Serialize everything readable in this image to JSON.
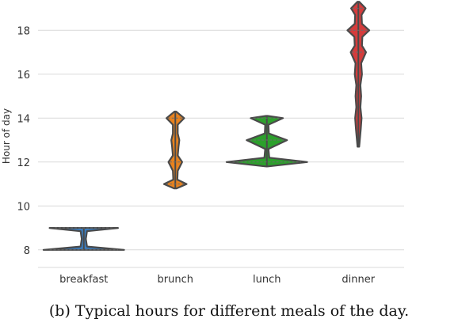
{
  "caption": "(b) Typical hours for different meals of the day.",
  "chart_data": {
    "type": "violin",
    "title": "",
    "xlabel": "",
    "ylabel": "Hour of day",
    "categories": [
      "breakfast",
      "brunch",
      "lunch",
      "dinner"
    ],
    "ylim": [
      7.2,
      19.2
    ],
    "yticks": [
      8,
      10,
      12,
      14,
      16,
      18
    ],
    "grid": "horizontal",
    "series": [
      {
        "category": "breakfast",
        "color": "#3a7fc4",
        "range": [
          8,
          9
        ],
        "density": [
          [
            8,
            1.0
          ],
          [
            8.15,
            0.08
          ],
          [
            8.5,
            0.05
          ],
          [
            8.85,
            0.08
          ],
          [
            9,
            0.85
          ]
        ]
      },
      {
        "category": "brunch",
        "color": "#e8821e",
        "range": [
          10.8,
          14.3
        ],
        "density": [
          [
            10.8,
            0.03
          ],
          [
            11,
            0.28
          ],
          [
            11.2,
            0.05
          ],
          [
            11.6,
            0.06
          ],
          [
            12,
            0.17
          ],
          [
            12.3,
            0.06
          ],
          [
            12.7,
            0.08
          ],
          [
            13,
            0.1
          ],
          [
            13.3,
            0.06
          ],
          [
            13.7,
            0.06
          ],
          [
            14,
            0.22
          ],
          [
            14.3,
            0.02
          ]
        ]
      },
      {
        "category": "lunch",
        "color": "#2ca02c",
        "range": [
          11.8,
          14.1
        ],
        "density": [
          [
            11.8,
            0.03
          ],
          [
            12,
            1.0
          ],
          [
            12.2,
            0.06
          ],
          [
            12.6,
            0.04
          ],
          [
            13,
            0.5
          ],
          [
            13.3,
            0.05
          ],
          [
            13.7,
            0.04
          ],
          [
            14,
            0.4
          ],
          [
            14.1,
            0.02
          ]
        ]
      },
      {
        "category": "dinner",
        "color": "#d43c3c",
        "range": [
          12.7,
          19.3
        ],
        "density": [
          [
            12.7,
            0.02
          ],
          [
            13.5,
            0.06
          ],
          [
            14,
            0.08
          ],
          [
            14.5,
            0.05
          ],
          [
            15,
            0.07
          ],
          [
            15.5,
            0.05
          ],
          [
            16,
            0.09
          ],
          [
            16.5,
            0.07
          ],
          [
            17,
            0.19
          ],
          [
            17.3,
            0.09
          ],
          [
            17.7,
            0.1
          ],
          [
            18,
            0.27
          ],
          [
            18.3,
            0.09
          ],
          [
            18.7,
            0.08
          ],
          [
            19,
            0.18
          ],
          [
            19.3,
            0.02
          ]
        ]
      }
    ],
    "line_color": "#4a4a4a",
    "grid_color": "#d9d9d9"
  }
}
